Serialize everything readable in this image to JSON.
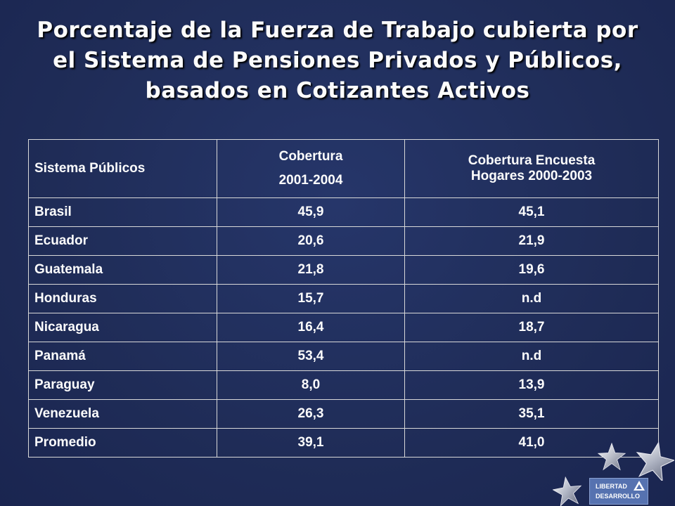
{
  "title": {
    "line1": "Porcentaje de la Fuerza de Trabajo cubierta por",
    "line2": "el Sistema de Pensiones Privados y Públicos,",
    "line3": "basados en Cotizantes Activos"
  },
  "table": {
    "headers": {
      "col1": "Sistema Públicos",
      "col2_line1": "Cobertura",
      "col2_line2": "2001-2004",
      "col3_line1": "Cobertura Encuesta",
      "col3_line2": "Hogares 2000-2003"
    },
    "rows": [
      {
        "country": "Brasil",
        "cobertura": "45,9",
        "encuesta": "45,1"
      },
      {
        "country": "Ecuador",
        "cobertura": "20,6",
        "encuesta": "21,9"
      },
      {
        "country": "Guatemala",
        "cobertura": "21,8",
        "encuesta": "19,6"
      },
      {
        "country": "Honduras",
        "cobertura": "15,7",
        "encuesta": "n.d"
      },
      {
        "country": "Nicaragua",
        "cobertura": "16,4",
        "encuesta": "18,7"
      },
      {
        "country": "Panamá",
        "cobertura": "53,4",
        "encuesta": "n.d"
      },
      {
        "country": "Paraguay",
        "cobertura": "8,0",
        "encuesta": "13,9"
      },
      {
        "country": "Venezuela",
        "cobertura": "26,3",
        "encuesta": "35,1"
      },
      {
        "country": "Promedio",
        "cobertura": "39,1",
        "encuesta": "41,0"
      }
    ]
  },
  "logo": {
    "line1": "LIBERTAD",
    "line2": "DESARROLLO"
  },
  "colors": {
    "background": "#1f2c57",
    "text": "#fcfcfc",
    "border": "#d9d9d9",
    "logo_bg": "#5672b0"
  },
  "icons": [
    "star-icon",
    "libertad-desarrollo-logo"
  ]
}
